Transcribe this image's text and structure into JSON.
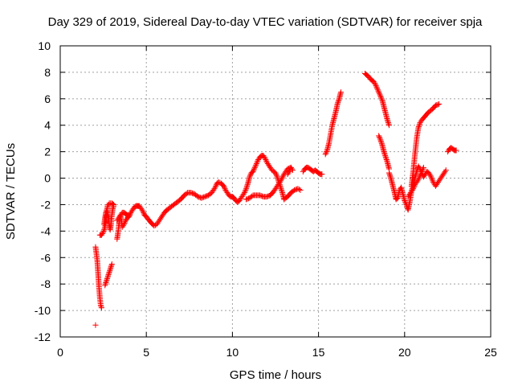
{
  "chart_data": {
    "type": "scatter",
    "title": "Day 329 of 2019, Sidereal Day-to-day VTEC variation (SDTVAR) for receiver spja",
    "xlabel": "GPS time / hours",
    "ylabel": "SDTVAR / TECUs",
    "xlim": [
      0,
      25
    ],
    "ylim": [
      -12,
      10
    ],
    "xticks": [
      0,
      5,
      10,
      15,
      20,
      25
    ],
    "yticks": [
      -12,
      -10,
      -8,
      -6,
      -4,
      -2,
      0,
      2,
      4,
      6,
      8,
      10
    ],
    "grid": true,
    "marker": "+",
    "color": "#ff0000",
    "segments": [
      [
        [
          2.05,
          -11.1
        ]
      ],
      [
        [
          2.05,
          -5.2
        ],
        [
          2.15,
          -6.2
        ],
        [
          2.2,
          -7.2
        ],
        [
          2.25,
          -8.2
        ],
        [
          2.3,
          -9.0
        ],
        [
          2.35,
          -9.6
        ],
        [
          2.4,
          -9.8
        ]
      ],
      [
        [
          2.3,
          -4.3
        ],
        [
          2.4,
          -4.3
        ],
        [
          2.5,
          -4.1
        ],
        [
          2.6,
          -3.7
        ],
        [
          2.65,
          -3.2
        ],
        [
          2.7,
          -2.6
        ],
        [
          2.75,
          -2.1
        ],
        [
          2.85,
          -1.9
        ],
        [
          3.0,
          -1.9
        ],
        [
          3.1,
          -2.0
        ]
      ],
      [
        [
          2.55,
          -3.5
        ],
        [
          2.6,
          -3.0
        ],
        [
          2.65,
          -2.6
        ],
        [
          2.7,
          -2.4
        ],
        [
          2.75,
          -2.6
        ],
        [
          2.8,
          -3.0
        ],
        [
          2.85,
          -3.6
        ],
        [
          2.9,
          -3.9
        ],
        [
          2.95,
          -3.5
        ],
        [
          3.0,
          -2.8
        ],
        [
          3.05,
          -2.3
        ],
        [
          3.1,
          -2.1
        ]
      ],
      [
        [
          2.6,
          -8.1
        ],
        [
          2.7,
          -7.7
        ],
        [
          2.8,
          -7.3
        ],
        [
          2.9,
          -6.9
        ],
        [
          3.0,
          -6.5
        ]
      ],
      [
        [
          3.3,
          -4.6
        ],
        [
          3.35,
          -4.2
        ],
        [
          3.4,
          -3.6
        ],
        [
          3.45,
          -3.1
        ],
        [
          3.5,
          -2.8
        ],
        [
          3.55,
          -3.2
        ],
        [
          3.6,
          -3.7
        ],
        [
          3.7,
          -3.5
        ],
        [
          3.8,
          -3.2
        ],
        [
          3.9,
          -3.0
        ],
        [
          4.0,
          -2.9
        ],
        [
          4.1,
          -2.6
        ],
        [
          4.2,
          -2.4
        ],
        [
          4.3,
          -2.2
        ],
        [
          4.4,
          -2.1
        ],
        [
          4.5,
          -2.1
        ],
        [
          4.6,
          -2.1
        ],
        [
          4.7,
          -2.3
        ],
        [
          4.8,
          -2.5
        ],
        [
          4.9,
          -2.8
        ],
        [
          5.0,
          -2.9
        ],
        [
          5.1,
          -3.1
        ],
        [
          5.3,
          -3.4
        ],
        [
          5.45,
          -3.6
        ],
        [
          5.6,
          -3.5
        ],
        [
          5.75,
          -3.2
        ],
        [
          5.9,
          -2.9
        ],
        [
          6.05,
          -2.6
        ],
        [
          6.2,
          -2.4
        ],
        [
          6.4,
          -2.2
        ],
        [
          6.6,
          -2.0
        ],
        [
          6.8,
          -1.8
        ],
        [
          7.0,
          -1.6
        ],
        [
          7.2,
          -1.3
        ],
        [
          7.4,
          -1.1
        ],
        [
          7.6,
          -1.1
        ],
        [
          7.8,
          -1.2
        ],
        [
          8.0,
          -1.4
        ],
        [
          8.2,
          -1.5
        ],
        [
          8.4,
          -1.4
        ],
        [
          8.6,
          -1.3
        ],
        [
          8.8,
          -1.1
        ],
        [
          9.0,
          -0.7
        ],
        [
          9.1,
          -0.4
        ],
        [
          9.2,
          -0.3
        ],
        [
          9.35,
          -0.4
        ],
        [
          9.5,
          -0.6
        ],
        [
          9.6,
          -0.9
        ],
        [
          9.7,
          -1.1
        ],
        [
          9.8,
          -1.3
        ],
        [
          9.9,
          -1.4
        ],
        [
          10.0,
          -1.4
        ],
        [
          10.1,
          -1.5
        ],
        [
          10.2,
          -1.7
        ],
        [
          10.3,
          -1.8
        ],
        [
          10.4,
          -1.7
        ],
        [
          10.5,
          -1.5
        ],
        [
          10.6,
          -1.3
        ],
        [
          10.7,
          -1.1
        ],
        [
          10.8,
          -0.8
        ],
        [
          10.9,
          -0.4
        ],
        [
          11.0,
          0.1
        ],
        [
          11.1,
          0.4
        ],
        [
          11.2,
          0.5
        ],
        [
          11.3,
          0.8
        ],
        [
          11.4,
          1.1
        ],
        [
          11.5,
          1.4
        ],
        [
          11.6,
          1.6
        ],
        [
          11.7,
          1.7
        ],
        [
          11.8,
          1.7
        ],
        [
          11.9,
          1.5
        ],
        [
          12.0,
          1.2
        ],
        [
          12.1,
          1.0
        ],
        [
          12.2,
          0.8
        ],
        [
          12.3,
          0.6
        ],
        [
          12.5,
          0.4
        ],
        [
          12.6,
          0.1
        ],
        [
          12.7,
          -0.3
        ],
        [
          12.8,
          -0.7
        ],
        [
          12.9,
          -1.1
        ],
        [
          13.0,
          -1.6
        ]
      ],
      [
        [
          3.3,
          -3.2
        ],
        [
          3.4,
          -3.0
        ],
        [
          3.5,
          -2.8
        ],
        [
          3.6,
          -2.6
        ],
        [
          3.7,
          -2.6
        ],
        [
          3.8,
          -2.7
        ],
        [
          3.9,
          -2.8
        ],
        [
          4.0,
          -2.8
        ]
      ],
      [
        [
          10.8,
          -1.6
        ],
        [
          11.0,
          -1.5
        ],
        [
          11.2,
          -1.3
        ],
        [
          11.4,
          -1.3
        ],
        [
          11.6,
          -1.3
        ],
        [
          11.8,
          -1.4
        ],
        [
          12.0,
          -1.4
        ],
        [
          12.2,
          -1.3
        ],
        [
          12.4,
          -1.0
        ],
        [
          12.6,
          -0.6
        ],
        [
          12.8,
          -0.2
        ],
        [
          13.0,
          0.3
        ],
        [
          13.2,
          0.7
        ],
        [
          13.4,
          0.8
        ],
        [
          13.5,
          0.6
        ]
      ],
      [
        [
          13.0,
          -1.6
        ],
        [
          13.2,
          -1.4
        ],
        [
          13.4,
          -1.1
        ],
        [
          13.6,
          -0.9
        ],
        [
          13.8,
          -0.8
        ],
        [
          13.95,
          -0.9
        ]
      ],
      [
        [
          13.2,
          0.3
        ],
        [
          13.3,
          0.5
        ],
        [
          13.4,
          0.8
        ]
      ],
      [
        [
          14.1,
          0.5
        ],
        [
          14.2,
          0.7
        ],
        [
          14.3,
          0.8
        ],
        [
          14.4,
          0.8
        ],
        [
          14.5,
          0.7
        ],
        [
          14.6,
          0.6
        ],
        [
          14.7,
          0.5
        ],
        [
          14.8,
          0.6
        ],
        [
          14.9,
          0.5
        ],
        [
          15.0,
          0.4
        ],
        [
          15.1,
          0.3
        ],
        [
          15.2,
          0.3
        ]
      ],
      [
        [
          15.4,
          1.8
        ],
        [
          15.5,
          2.1
        ],
        [
          15.6,
          2.6
        ],
        [
          15.7,
          3.3
        ],
        [
          15.8,
          4.0
        ],
        [
          15.9,
          4.5
        ],
        [
          16.0,
          5.0
        ],
        [
          16.1,
          5.6
        ],
        [
          16.2,
          6.0
        ],
        [
          16.3,
          6.5
        ]
      ],
      [
        [
          17.7,
          7.9
        ],
        [
          17.8,
          7.8
        ],
        [
          17.9,
          7.7
        ],
        [
          18.0,
          7.5
        ],
        [
          18.1,
          7.4
        ],
        [
          18.2,
          7.3
        ],
        [
          18.3,
          7.1
        ],
        [
          18.4,
          6.8
        ],
        [
          18.5,
          6.5
        ],
        [
          18.6,
          6.2
        ],
        [
          18.7,
          5.9
        ],
        [
          18.8,
          5.4
        ],
        [
          18.9,
          4.9
        ],
        [
          19.0,
          4.4
        ],
        [
          19.1,
          4.0
        ]
      ],
      [
        [
          18.5,
          3.2
        ],
        [
          18.6,
          2.9
        ],
        [
          18.7,
          2.5
        ],
        [
          18.8,
          2.0
        ],
        [
          18.9,
          1.6
        ],
        [
          19.0,
          1.2
        ],
        [
          19.1,
          0.7
        ]
      ],
      [
        [
          19.1,
          0.4
        ],
        [
          19.2,
          0.0
        ],
        [
          19.3,
          -0.5
        ],
        [
          19.4,
          -1.0
        ],
        [
          19.5,
          -1.6
        ],
        [
          19.6,
          -1.5
        ],
        [
          19.7,
          -0.9
        ],
        [
          19.8,
          -0.7
        ],
        [
          19.9,
          -1.2
        ],
        [
          20.0,
          -1.7
        ],
        [
          20.1,
          -2.0
        ],
        [
          20.2,
          -2.4
        ],
        [
          20.3,
          -1.8
        ],
        [
          20.4,
          -1.0
        ],
        [
          20.5,
          -0.5
        ],
        [
          20.6,
          0.0
        ],
        [
          20.7,
          0.5
        ],
        [
          20.8,
          0.9
        ],
        [
          20.9,
          0.7
        ],
        [
          21.0,
          0.4
        ],
        [
          21.1,
          0.1
        ],
        [
          21.2,
          0.3
        ],
        [
          21.3,
          0.5
        ],
        [
          21.4,
          0.4
        ],
        [
          21.5,
          0.2
        ],
        [
          21.6,
          -0.1
        ],
        [
          21.7,
          -0.4
        ],
        [
          21.8,
          -0.6
        ],
        [
          21.9,
          -0.4
        ],
        [
          22.0,
          -0.2
        ],
        [
          22.1,
          0.0
        ],
        [
          22.2,
          0.2
        ],
        [
          22.3,
          0.4
        ],
        [
          22.4,
          0.6
        ]
      ],
      [
        [
          20.2,
          -1.4
        ],
        [
          20.3,
          -1.2
        ],
        [
          20.4,
          -1.0
        ],
        [
          20.5,
          -0.8
        ],
        [
          20.6,
          -0.5
        ],
        [
          20.7,
          -0.3
        ],
        [
          20.8,
          -0.1
        ],
        [
          20.9,
          0.2
        ],
        [
          21.0,
          0.5
        ],
        [
          21.1,
          0.8
        ]
      ],
      [
        [
          20.4,
          -0.6
        ],
        [
          20.5,
          0.5
        ],
        [
          20.6,
          1.8
        ],
        [
          20.7,
          3.0
        ],
        [
          20.8,
          3.8
        ],
        [
          20.9,
          4.2
        ],
        [
          21.0,
          4.4
        ],
        [
          21.2,
          4.7
        ],
        [
          21.4,
          5.0
        ],
        [
          21.6,
          5.2
        ],
        [
          21.8,
          5.5
        ],
        [
          22.0,
          5.6
        ]
      ],
      [
        [
          22.5,
          2.0
        ],
        [
          22.6,
          2.2
        ],
        [
          22.7,
          2.3
        ],
        [
          22.8,
          2.2
        ],
        [
          22.9,
          2.1
        ],
        [
          23.0,
          2.1
        ]
      ]
    ]
  }
}
